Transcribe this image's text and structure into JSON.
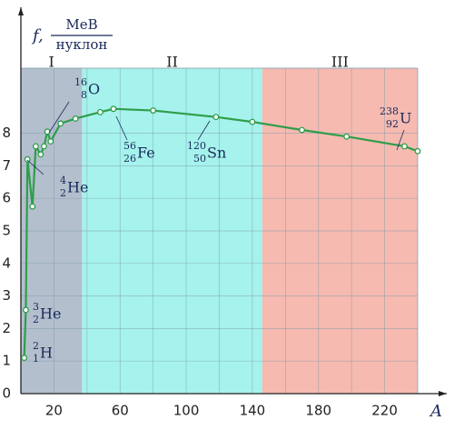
{
  "chart_data": {
    "type": "line",
    "y_label": "f,",
    "y_unit_top": "МеВ",
    "y_unit_bottom": "нуклон",
    "x_label": "A",
    "x": [
      2,
      3,
      4,
      7,
      9,
      12,
      14,
      16,
      18,
      24,
      33,
      48,
      56,
      80,
      118,
      140,
      170,
      197,
      232,
      240
    ],
    "values": [
      1.1,
      2.57,
      7.2,
      5.75,
      7.6,
      7.35,
      7.6,
      8.05,
      7.75,
      8.3,
      8.45,
      8.65,
      8.75,
      8.7,
      8.5,
      8.35,
      8.1,
      7.9,
      7.6,
      7.45
    ],
    "color": "#2e9e4a",
    "xlim": [
      0,
      240
    ],
    "ylim": [
      0,
      10
    ],
    "xticks": [
      20,
      60,
      100,
      140,
      180,
      220
    ],
    "yticks": [
      0,
      1,
      2,
      3,
      4,
      5,
      6,
      7,
      8
    ],
    "grid": true,
    "regions": [
      {
        "label": "I",
        "range": [
          0,
          37
        ],
        "color": "#b3bfcd"
      },
      {
        "label": "II",
        "range": [
          37,
          146
        ],
        "color": "#a6f2ec"
      },
      {
        "label": "III",
        "range": [
          146,
          240
        ],
        "color": "#f6bab1"
      }
    ],
    "isotopes": [
      {
        "mass": "2",
        "charge": "1",
        "symbol": "H"
      },
      {
        "mass": "3",
        "charge": "2",
        "symbol": "He"
      },
      {
        "mass": "4",
        "charge": "2",
        "symbol": "He"
      },
      {
        "mass": "16",
        "charge": "8",
        "symbol": "O"
      },
      {
        "mass": "56",
        "charge": "26",
        "symbol": "Fe"
      },
      {
        "mass": "120",
        "charge": "50",
        "symbol": "Sn"
      },
      {
        "mass": "238",
        "charge": "92",
        "symbol": "U"
      }
    ]
  }
}
